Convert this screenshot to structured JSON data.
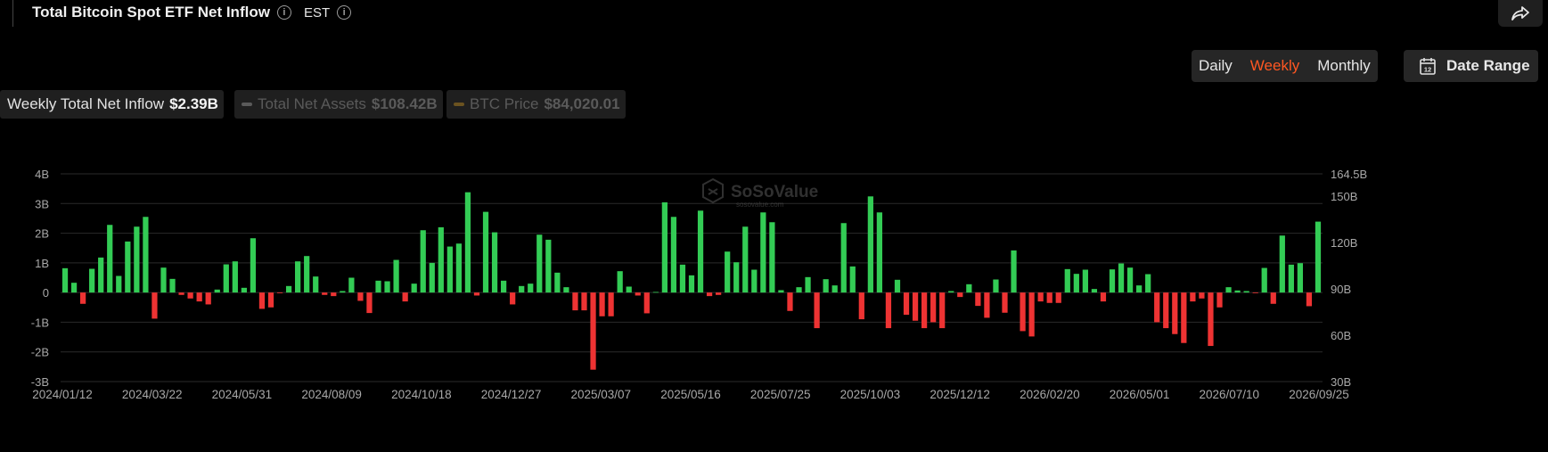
{
  "header": {
    "title": "Total Bitcoin Spot ETF Net Inflow",
    "timezone": "EST",
    "info_icon": "info-icon",
    "share_icon": "share-icon"
  },
  "controls": {
    "periods": [
      "Daily",
      "Weekly",
      "Monthly"
    ],
    "active_period": "Weekly",
    "date_range_label": "Date Range",
    "calendar_icon": "calendar-icon",
    "calendar_day": "12"
  },
  "legend": {
    "net_inflow": {
      "label": "Weekly Total Net Inflow",
      "value": "$2.39B"
    },
    "net_assets": {
      "label": "Total Net Assets",
      "value": "$108.42B",
      "color": "#ff7a2d"
    },
    "btc_price": {
      "label": "BTC Price",
      "value": "$84,020.01",
      "color": "#e6a117"
    }
  },
  "watermark": {
    "brand": "SoSoValue",
    "url": "sosovalue.com"
  },
  "colors": {
    "positive": "#33cc55",
    "negative": "#ee3333",
    "grid": "#2a2a2a",
    "axis_text": "#a8a8a8"
  },
  "chart_data": {
    "type": "bar",
    "series": [
      {
        "name": "Weekly Total Net Inflow",
        "unit": "B"
      }
    ],
    "x_ticks": [
      "2024/01/12",
      "2024/03/22",
      "2024/05/31",
      "2024/08/09",
      "2024/10/18",
      "2024/12/27",
      "2025/03/07",
      "2025/05/16",
      "2025/07/25",
      "2025/10/03",
      "2025/12/12",
      "2026/02/20",
      "2026/05/01",
      "2026/07/10",
      "2026/09/25"
    ],
    "y_left_ticks": [
      "4B",
      "3B",
      "2B",
      "1B",
      "0",
      "-1B",
      "-2B",
      "-3B"
    ],
    "y_left_range": [
      -3,
      4
    ],
    "y_right_ticks": [
      "164.5B",
      "150B",
      "120B",
      "90B",
      "60B",
      "30B"
    ],
    "y_right_range": [
      30,
      164.5
    ],
    "grid": true,
    "values": [
      0.82,
      0.33,
      -0.38,
      0.8,
      1.18,
      2.28,
      0.56,
      1.72,
      2.22,
      2.55,
      -0.88,
      0.84,
      0.46,
      -0.08,
      -0.2,
      -0.3,
      -0.4,
      0.1,
      0.95,
      1.05,
      0.16,
      1.83,
      -0.55,
      -0.5,
      -0.02,
      0.22,
      1.05,
      1.23,
      0.54,
      -0.08,
      -0.12,
      0.05,
      0.5,
      -0.28,
      -0.69,
      0.4,
      0.38,
      1.1,
      -0.3,
      0.3,
      2.1,
      1.0,
      2.2,
      1.55,
      1.65,
      3.38,
      -0.1,
      2.72,
      2.03,
      0.4,
      -0.4,
      0.22,
      0.3,
      1.95,
      1.78,
      0.67,
      0.18,
      -0.6,
      -0.6,
      -2.6,
      -0.8,
      -0.8,
      0.72,
      0.2,
      -0.1,
      -0.7,
      0.02,
      3.04,
      2.55,
      0.94,
      0.58,
      2.76,
      -0.12,
      -0.08,
      1.38,
      1.02,
      2.22,
      0.77,
      2.7,
      2.37,
      0.08,
      -0.62,
      0.18,
      0.52,
      -1.2,
      0.45,
      0.24,
      2.34,
      0.88,
      -0.9,
      3.24,
      2.7,
      -1.2,
      0.43,
      -0.75,
      -0.95,
      -1.2,
      -1.0,
      -1.2,
      0.05,
      -0.15,
      0.28,
      -0.45,
      -0.85,
      0.44,
      -0.68,
      1.42,
      -1.3,
      -1.48,
      -0.3,
      -0.35,
      -0.35,
      0.79,
      0.63,
      0.77,
      0.12,
      -0.3,
      0.78,
      0.98,
      0.84,
      0.24,
      0.62,
      -1.0,
      -1.2,
      -1.4,
      -1.7,
      -0.3,
      -0.2,
      -1.8,
      -0.5,
      0.18,
      0.07,
      0.05,
      -0.02,
      0.83,
      -0.38,
      1.92,
      0.94,
      0.99,
      -0.46,
      2.39
    ]
  }
}
